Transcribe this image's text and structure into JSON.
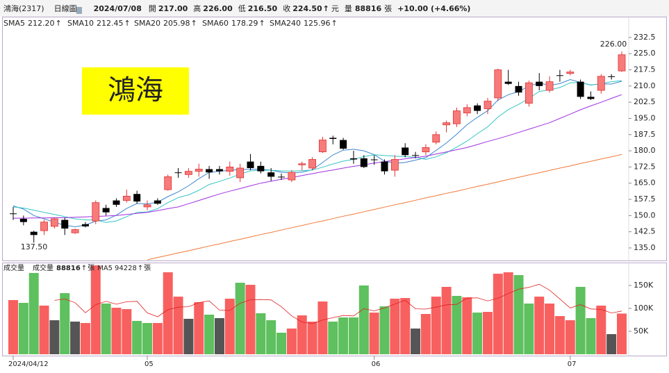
{
  "chart_data": {
    "type": "candlestick",
    "title": "鴻海(2317)",
    "period": "日線圖",
    "date": "2024/07/08",
    "info": [
      {
        "label": "開",
        "value": "217.00"
      },
      {
        "label": "高",
        "value": "226.00"
      },
      {
        "label": "低",
        "value": "216.50"
      },
      {
        "label": "收",
        "value": "224.50"
      }
    ],
    "unit": "元",
    "volume_word": "量",
    "volume_unit": "張",
    "change": "+10.00 (+4.66%)",
    "up_arrow": "↑",
    "banner": "鴻海",
    "high_label": {
      "value": 226,
      "label": "226.00"
    },
    "low_label": {
      "value": 137.5,
      "label": "137.50"
    },
    "categories": [
      "2024/04/12",
      null,
      null,
      null,
      null,
      null,
      null,
      null,
      null,
      null,
      null,
      null,
      null,
      "05",
      null,
      null,
      null,
      null,
      null,
      null,
      null,
      null,
      null,
      null,
      null,
      null,
      null,
      null,
      null,
      null,
      null,
      null,
      null,
      null,
      null,
      "06",
      null,
      null,
      null,
      null,
      null,
      null,
      null,
      null,
      null,
      null,
      null,
      null,
      null,
      null,
      null,
      null,
      null,
      null,
      "07",
      null,
      null,
      null,
      null,
      null
    ],
    "open": [
      151,
      148.5,
      142.5,
      143,
      145,
      148,
      142,
      146,
      147.5,
      153.5,
      157,
      157,
      160,
      154,
      157,
      162,
      170,
      169,
      170.5,
      171.5,
      171.5,
      170.5,
      167.5,
      175,
      173,
      170,
      168,
      166.5,
      173.5,
      172,
      179.5,
      186,
      185,
      176.5,
      176.5,
      176,
      175,
      171,
      181.5,
      178,
      179.5,
      184,
      192,
      192.5,
      197.5,
      201,
      199.5,
      204.5,
      212,
      210,
      202,
      212,
      208,
      215,
      215.8,
      212,
      205,
      208,
      214.5,
      217
    ],
    "high": [
      154,
      150,
      143,
      148,
      149,
      149,
      144,
      147,
      157,
      155,
      158,
      162,
      161.5,
      157,
      158,
      169,
      172,
      172,
      174,
      173,
      173,
      175,
      174,
      178.5,
      175,
      172,
      169.5,
      171,
      175,
      177,
      186.5,
      187,
      186,
      180,
      178,
      178,
      176,
      178,
      183.5,
      179.5,
      183,
      189,
      194,
      200,
      201.5,
      202,
      204.5,
      218,
      217.5,
      212,
      212.5,
      216,
      214.5,
      217.5,
      217.5,
      213,
      207.5,
      215.5,
      215.5,
      226
    ],
    "low": [
      148,
      145.5,
      137.5,
      141,
      144,
      141,
      141.5,
      144.5,
      146,
      150,
      154,
      156,
      155.5,
      152.5,
      155,
      161.5,
      167.5,
      167.5,
      168,
      167,
      169,
      168.5,
      165.5,
      171,
      169.5,
      166,
      166.5,
      165.5,
      171,
      171,
      179,
      183,
      180.5,
      174,
      172,
      173.5,
      169,
      168,
      177,
      176.5,
      178,
      183,
      188.5,
      191,
      196,
      197,
      197,
      203,
      210.5,
      205.5,
      200.5,
      208,
      207,
      212,
      215,
      204,
      203.5,
      206.5,
      213,
      216.5
    ],
    "close": [
      151,
      147,
      141,
      147,
      148.5,
      144,
      143.5,
      145,
      156,
      151.5,
      155,
      159,
      156.5,
      155,
      155.5,
      168,
      170,
      170.5,
      171.5,
      170,
      170.5,
      172.5,
      172,
      172,
      170.5,
      168,
      168,
      170,
      174,
      176,
      185,
      185.5,
      181,
      176,
      172.5,
      176,
      170.5,
      176,
      178,
      178,
      181.5,
      187.5,
      193,
      198.5,
      200,
      198.5,
      203,
      217.5,
      211,
      207,
      211.5,
      210,
      212,
      215,
      216.5,
      205,
      204,
      214.5,
      214.5,
      224.5
    ],
    "up_color": "#f77b7b",
    "up_edge": "#e03030",
    "down_color": "#000000",
    "ylim": [
      129.2,
      241.8
    ],
    "yticks": [
      {
        "value": 135,
        "label": "135.0"
      },
      {
        "value": 142.5,
        "label": "142.5"
      },
      {
        "value": 150,
        "label": "150.0"
      },
      {
        "value": 157.5,
        "label": "157.5"
      },
      {
        "value": 165,
        "label": "165.0"
      },
      {
        "value": 172.5,
        "label": "172.5"
      },
      {
        "value": 180,
        "label": "180.0"
      },
      {
        "value": 187.5,
        "label": "187.5"
      },
      {
        "value": 195,
        "label": "195.0"
      },
      {
        "value": 202.5,
        "label": "202.5"
      },
      {
        "value": 210,
        "label": "210.0"
      },
      {
        "value": 217.5,
        "label": "217.5"
      },
      {
        "value": 225,
        "label": "225.0"
      },
      {
        "value": 232.5,
        "label": "232.5"
      }
    ],
    "ma": [
      {
        "name": "SMA5",
        "last": "212.20",
        "color": "#3a86d0",
        "values": [
          154.5,
          153,
          150,
          148.5,
          146.9,
          145.5,
          144.8,
          145.6,
          147.4,
          148,
          150.2,
          153.3,
          155.6,
          155.4,
          156.2,
          158.8,
          161,
          163.8,
          167.1,
          170,
          170.5,
          171,
          171.3,
          171.4,
          171.5,
          171,
          170.1,
          169.7,
          170.1,
          171.2,
          174.6,
          178.1,
          180.3,
          180.7,
          180,
          178.2,
          175.2,
          174.2,
          174.6,
          175.7,
          176.8,
          180.2,
          183.6,
          187.7,
          192.1,
          195.5,
          198.6,
          203.5,
          206,
          207.4,
          210,
          211.4,
          210.3,
          211.1,
          213,
          211.7,
          210.5,
          211,
          210.9,
          212.2
        ]
      },
      {
        "name": "SMA10",
        "last": "212.45",
        "color": "#35c4c4",
        "values": [
          154,
          153.5,
          152.5,
          151.5,
          150.5,
          149.5,
          148.5,
          148,
          148,
          146.8,
          147.5,
          149.5,
          151.5,
          151.7,
          153.2,
          156,
          158.3,
          159.6,
          161.7,
          164.4,
          165.8,
          167.4,
          169.2,
          170.7,
          171,
          171,
          170.7,
          170.6,
          170.8,
          171.1,
          172.4,
          173.9,
          175.2,
          176,
          177.3,
          178.2,
          177.8,
          177.5,
          177.3,
          177,
          176,
          177.2,
          179.1,
          181.7,
          184.5,
          187.9,
          191.1,
          195.6,
          199.1,
          201.5,
          204.3,
          207.5,
          208.2,
          209.3,
          211.5,
          211.6,
          210.4,
          211.1,
          212,
          212.45
        ]
      },
      {
        "name": "SMA20",
        "last": "205.98",
        "color": "#a030e0",
        "values": [
          148.8,
          148.8,
          148.9,
          148.9,
          149,
          149,
          149.2,
          149.4,
          149.6,
          149.8,
          150,
          150.5,
          151,
          151.5,
          152.3,
          153.2,
          154,
          155.5,
          157,
          158.5,
          160,
          161.3,
          162.5,
          163.8,
          165,
          165.9,
          166.8,
          167.6,
          168.5,
          169.4,
          170.3,
          171.1,
          172,
          172.8,
          173.5,
          174.3,
          175,
          175.6,
          176.3,
          176.9,
          177.5,
          178.5,
          179.5,
          180.5,
          181.5,
          182.9,
          184.3,
          185.6,
          187,
          188.5,
          190,
          191.5,
          193,
          195,
          197,
          199,
          200.8,
          202.5,
          204.3,
          205.98
        ]
      },
      {
        "name": "SMA60",
        "last": "178.29",
        "color": "#f07838",
        "values": [
          null,
          null,
          null,
          null,
          null,
          null,
          null,
          null,
          null,
          null,
          null,
          null,
          null,
          129.5,
          130.6,
          131.6,
          132.7,
          133.7,
          134.8,
          135.9,
          136.9,
          138,
          139,
          140.1,
          141.2,
          142.2,
          143.3,
          144.4,
          145.4,
          146.5,
          147.5,
          148.6,
          149.7,
          150.7,
          151.8,
          152.8,
          153.9,
          155,
          156,
          157.1,
          158.2,
          159.2,
          160.3,
          161.3,
          162.4,
          163.5,
          164.5,
          165.6,
          166.7,
          167.7,
          168.8,
          169.8,
          170.9,
          172,
          173,
          174.1,
          175.1,
          176.2,
          177.2,
          178.29
        ]
      },
      {
        "name": "SMA240",
        "last": "125.96",
        "color": "#1f8fbf"
      }
    ],
    "volume_title": "成交量",
    "volume_header": "成交量",
    "ma5_name": "MA5",
    "ma5_color": "#e02020",
    "volume": [
      118200,
      112100,
      177300,
      106100,
      74200,
      133300,
      71200,
      68200,
      193900,
      110600,
      101500,
      98500,
      72700,
      68200,
      68200,
      178800,
      125700,
      77300,
      113600,
      86400,
      78800,
      121200,
      156000,
      151500,
      89400,
      74200,
      47000,
      56100,
      84800,
      71200,
      115100,
      71200,
      80300,
      80300,
      150000,
      90900,
      104500,
      121200,
      122700,
      56100,
      87900,
      125700,
      147000,
      127300,
      124200,
      90900,
      92400,
      175700,
      178800,
      172700,
      110600,
      125700,
      110600,
      83300,
      74200,
      147000,
      78800,
      106100,
      43900,
      88816
    ],
    "volume_colors": [
      "#f86060",
      "#5ec05e",
      "#5ec05e",
      "#f86060",
      "#555555",
      "#5ec05e",
      "#555555",
      "#f86060",
      "#f86060",
      "#5ec05e",
      "#f86060",
      "#f86060",
      "#5ec05e",
      "#5ec05e",
      "#f86060",
      "#f86060",
      "#f86060",
      "#555555",
      "#f86060",
      "#5ec05e",
      "#555555",
      "#f86060",
      "#5ec05e",
      "#f86060",
      "#5ec05e",
      "#5ec05e",
      "#5ec05e",
      "#f86060",
      "#f86060",
      "#f86060",
      "#f86060",
      "#5ec05e",
      "#5ec05e",
      "#5ec05e",
      "#5ec05e",
      "#f86060",
      "#5ec05e",
      "#f86060",
      "#f86060",
      "#555555",
      "#f86060",
      "#f86060",
      "#f86060",
      "#5ec05e",
      "#f86060",
      "#5ec05e",
      "#f86060",
      "#f86060",
      "#f86060",
      "#5ec05e",
      "#5ec05e",
      "#f86060",
      "#f86060",
      "#f86060",
      "#f86060",
      "#5ec05e",
      "#5ec05e",
      "#f86060",
      "#555555",
      "#f86060"
    ],
    "volume_ma5": [
      null,
      null,
      null,
      null,
      117600,
      120600,
      112400,
      90600,
      108200,
      115400,
      109100,
      114500,
      115400,
      90300,
      81800,
      97300,
      102700,
      103600,
      112700,
      116400,
      96400,
      95500,
      111200,
      118800,
      119400,
      118500,
      103600,
      83600,
      70300,
      66700,
      74800,
      79700,
      84500,
      83600,
      99400,
      94500,
      101200,
      109400,
      117900,
      99100,
      98500,
      102700,
      107900,
      108800,
      122400,
      123000,
      116400,
      122100,
      132400,
      142100,
      146000,
      152700,
      139700,
      120600,
      100900,
      108200,
      98800,
      97900,
      90000,
      94228
    ],
    "vlim": [
      0,
      197000
    ],
    "vticks": [
      {
        "value": 50000,
        "label": "50K"
      },
      {
        "value": 100000,
        "label": "100K"
      },
      {
        "value": 150000,
        "label": "150K"
      }
    ]
  }
}
